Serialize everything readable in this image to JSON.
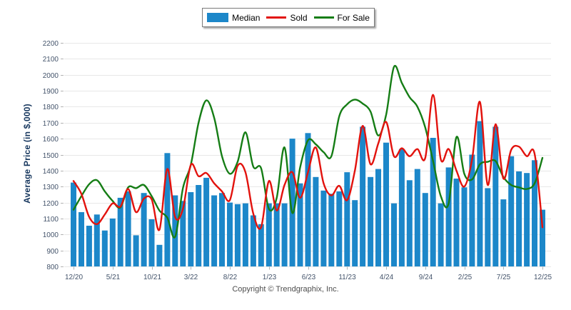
{
  "page": {
    "background": "#ffffff"
  },
  "chart_data": {
    "type": "bar",
    "subtype": "bar+line combo, monthly real-estate price trend",
    "n_points": 61,
    "x_tick_labels": [
      "12/20",
      "5/21",
      "10/21",
      "3/22",
      "8/22",
      "1/23",
      "6/23",
      "11/23",
      "4/24",
      "9/24",
      "2/25",
      "7/25",
      "12/25"
    ],
    "x_tick_interval": 5,
    "ylabel": "Average Price (in $,000)",
    "ylim": [
      800,
      2200
    ],
    "ytick_step": 100,
    "y_ticks": [
      800,
      900,
      1000,
      1100,
      1200,
      1300,
      1400,
      1500,
      1600,
      1700,
      1800,
      1900,
      2000,
      2100,
      2200
    ],
    "grid": "horizontal",
    "legend_position": "top-center",
    "series": [
      {
        "name": "Median",
        "type": "bar",
        "color": "#1c87c9",
        "values": [
          1325,
          1140,
          1055,
          1125,
          1025,
          1100,
          1230,
          1270,
          995,
          1260,
          1095,
          935,
          1510,
          1245,
          1210,
          1265,
          1310,
          1355,
          1245,
          1260,
          1200,
          1190,
          1195,
          1120,
          1065,
          1195,
          1195,
          1195,
          1600,
          1320,
          1635,
          1360,
          1275,
          1255,
          1270,
          1390,
          1215,
          1675,
          1360,
          1410,
          1575,
          1195,
          1535,
          1340,
          1410,
          1260,
          1605,
          1195,
          1420,
          1350,
          1295,
          1500,
          1710,
          1290,
          1675,
          1220,
          1490,
          1395,
          1385,
          1465,
          1155
        ]
      },
      {
        "name": "Sold",
        "type": "line",
        "color": "#e2120d",
        "values": [
          1335,
          1255,
          1110,
          1065,
          1125,
          1195,
          1175,
          1285,
          1140,
          1225,
          1220,
          1030,
          1410,
          1110,
          1160,
          1435,
          1365,
          1385,
          1320,
          1270,
          1215,
          1430,
          1390,
          1130,
          1045,
          1335,
          1150,
          1310,
          1390,
          1230,
          1390,
          1545,
          1320,
          1245,
          1305,
          1215,
          1400,
          1680,
          1440,
          1570,
          1705,
          1490,
          1540,
          1490,
          1535,
          1480,
          1875,
          1470,
          1535,
          1400,
          1300,
          1470,
          1830,
          1310,
          1690,
          1350,
          1530,
          1550,
          1490,
          1505,
          1045
        ]
      },
      {
        "name": "For Sale",
        "type": "line",
        "color": "#157d15",
        "values": [
          1155,
          1240,
          1315,
          1340,
          1270,
          1210,
          1170,
          1295,
          1290,
          1310,
          1240,
          1150,
          1105,
          985,
          1290,
          1435,
          1700,
          1840,
          1730,
          1490,
          1380,
          1455,
          1640,
          1425,
          1415,
          1160,
          1230,
          1545,
          1135,
          1420,
          1590,
          1565,
          1515,
          1490,
          1740,
          1815,
          1845,
          1820,
          1770,
          1620,
          1750,
          2050,
          1950,
          1860,
          1800,
          1670,
          1460,
          1240,
          1195,
          1610,
          1380,
          1345,
          1440,
          1455,
          1460,
          1360,
          1310,
          1295,
          1285,
          1320,
          1480
        ]
      }
    ]
  },
  "footer": {
    "text": "Copyright © Trendgraphix, Inc."
  },
  "colors": {
    "gridline": "#e8e8e8",
    "tick_text": "#44546b",
    "axis_title": "#17375e",
    "footer_text": "#4d4d4d",
    "legend_border": "#7a7a7a"
  }
}
